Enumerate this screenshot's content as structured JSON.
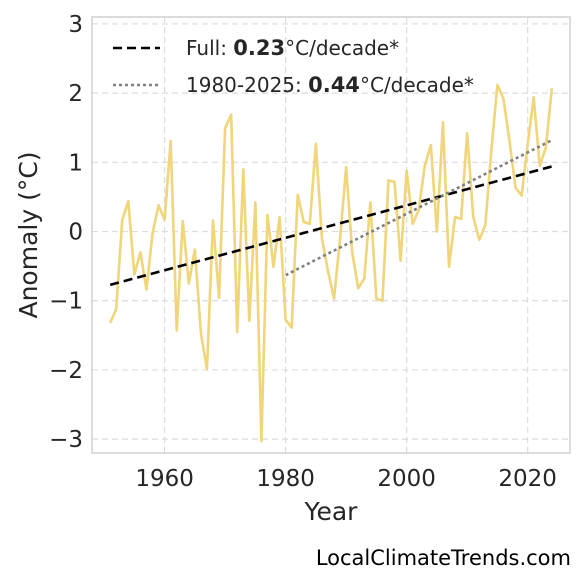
{
  "chart_data": {
    "type": "line",
    "xlabel": "Year",
    "ylabel": "Anomaly (°C)",
    "xlim": [
      1948,
      2027
    ],
    "ylim": [
      -3.2,
      3.1
    ],
    "xticks": [
      1960,
      1980,
      2000,
      2020
    ],
    "yticks": [
      -3,
      -2,
      -1,
      0,
      1,
      2,
      3
    ],
    "ytick_labels": [
      "−3",
      "−2",
      "−1",
      "0",
      "1",
      "2",
      "3"
    ],
    "grid": true,
    "legend_position": "top-left",
    "series": [
      {
        "type": "line",
        "color": "#f0d57a",
        "x": [
          1951,
          1952,
          1953,
          1954,
          1955,
          1956,
          1957,
          1958,
          1959,
          1960,
          1961,
          1962,
          1963,
          1964,
          1965,
          1966,
          1967,
          1968,
          1969,
          1970,
          1971,
          1972,
          1973,
          1974,
          1975,
          1976,
          1977,
          1978,
          1979,
          1980,
          1981,
          1982,
          1983,
          1984,
          1985,
          1986,
          1987,
          1988,
          1989,
          1990,
          1991,
          1992,
          1993,
          1994,
          1995,
          1996,
          1997,
          1998,
          1999,
          2000,
          2001,
          2002,
          2003,
          2004,
          2005,
          2006,
          2007,
          2008,
          2009,
          2010,
          2011,
          2012,
          2013,
          2014,
          2015,
          2016,
          2017,
          2018,
          2019,
          2020,
          2021,
          2022,
          2023,
          2024
        ],
        "y": [
          -1.32,
          -1.12,
          0.17,
          0.44,
          -0.62,
          -0.3,
          -0.84,
          -0.03,
          0.38,
          0.17,
          1.31,
          -1.43,
          0.15,
          -0.75,
          -0.26,
          -1.47,
          -1.99,
          0.16,
          -0.96,
          1.49,
          1.69,
          -1.45,
          0.9,
          -1.29,
          0.42,
          -3.03,
          0.24,
          -0.51,
          0.21,
          -1.27,
          -1.39,
          0.53,
          0.14,
          0.11,
          1.27,
          -0.1,
          -0.57,
          -0.97,
          -0.1,
          0.93,
          -0.3,
          -0.82,
          -0.68,
          0.42,
          -0.97,
          -1.0,
          0.74,
          0.72,
          -0.42,
          0.88,
          0.11,
          0.31,
          0.95,
          1.25,
          0.0,
          1.58,
          -0.51,
          0.21,
          0.18,
          1.42,
          0.22,
          -0.12,
          0.09,
          1.17,
          2.12,
          1.92,
          1.31,
          0.63,
          0.52,
          1.25,
          1.94,
          0.95,
          1.21,
          2.07
        ]
      },
      {
        "name": "Full: 0.23°C/decade*",
        "type": "trend",
        "style": "dashed",
        "color": "#000000",
        "x": [
          1951,
          2024
        ],
        "y": [
          -0.77,
          0.94
        ]
      },
      {
        "name": "1980-2025: 0.44°C/decade*",
        "type": "trend",
        "style": "dotted",
        "color": "#808080",
        "x": [
          1980,
          2024
        ],
        "y": [
          -0.63,
          1.32
        ]
      }
    ],
    "legend": [
      {
        "prefix": "Full: ",
        "bold": "0.23",
        "suffix": "°C/decade*",
        "style": "dashed",
        "color": "#000000"
      },
      {
        "prefix": "1980-2025: ",
        "bold": "0.44",
        "suffix": "°C/decade*",
        "style": "dotted",
        "color": "#808080"
      }
    ]
  },
  "watermark": "LocalClimateTrends.com"
}
